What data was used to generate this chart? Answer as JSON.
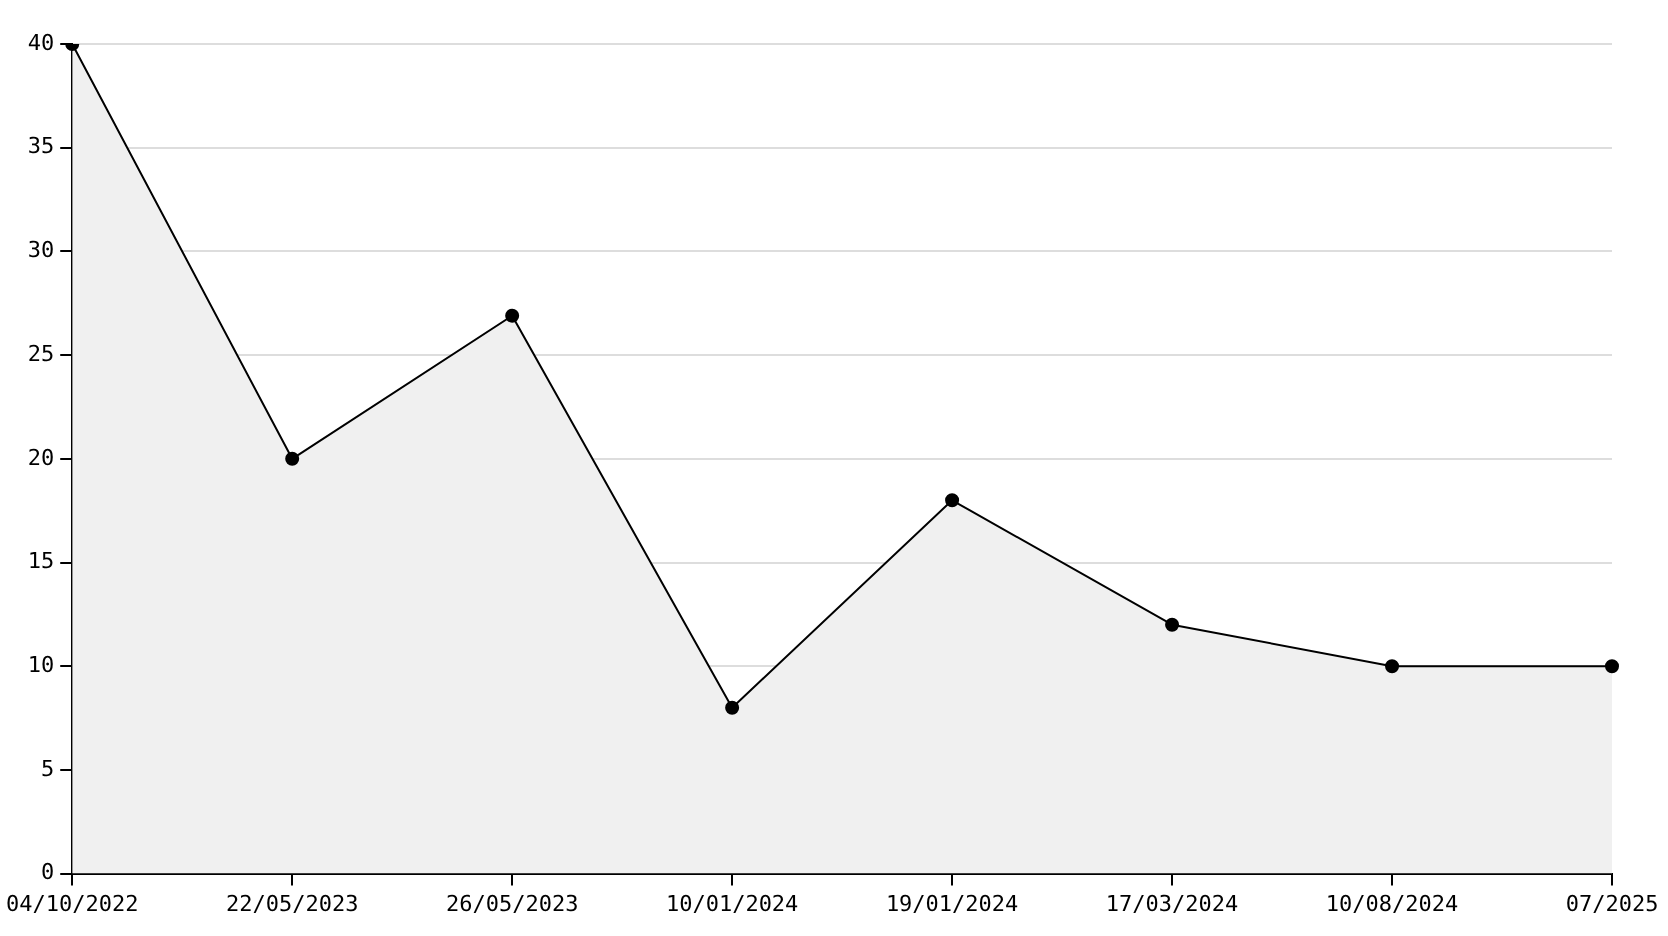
{
  "chart_data": {
    "type": "area",
    "categories": [
      "04/10/2022",
      "22/05/2023",
      "26/05/2023",
      "10/01/2024",
      "19/01/2024",
      "17/03/2024",
      "10/08/2024",
      "07/2025"
    ],
    "series": [
      {
        "color": "#000000",
        "values": [
          40,
          20,
          26.9,
          8,
          18,
          12,
          10,
          10
        ]
      }
    ],
    "ylim": [
      0,
      40
    ],
    "yticks": [
      0,
      5,
      10,
      15,
      20,
      25,
      30,
      35,
      40
    ],
    "grid": "y",
    "legend": false,
    "marker": "circle",
    "line_style": "solid"
  }
}
